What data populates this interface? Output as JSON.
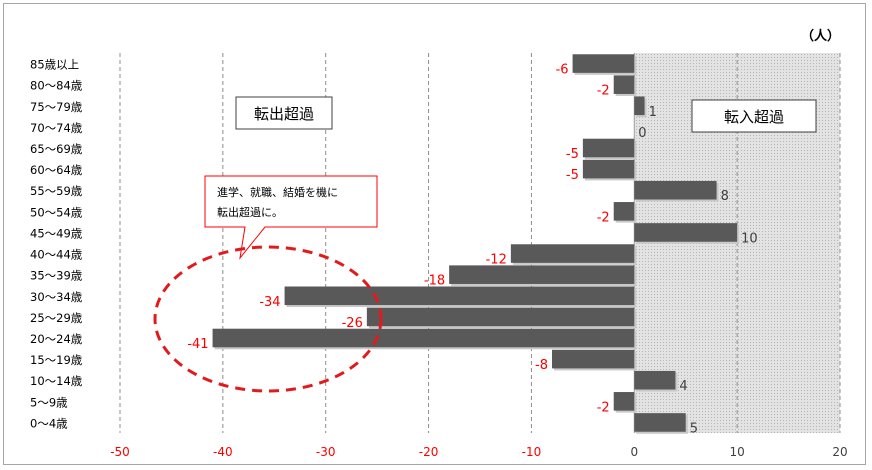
{
  "chart_data": {
    "type": "bar",
    "orientation": "horizontal",
    "unit_label": "（人）",
    "categories": [
      "85歳以上",
      "80〜84歳",
      "75〜79歳",
      "70〜74歳",
      "65〜69歳",
      "60〜64歳",
      "55〜59歳",
      "50〜54歳",
      "45〜49歳",
      "40〜44歳",
      "35〜39歳",
      "30〜34歳",
      "25〜29歳",
      "20〜24歳",
      "15〜19歳",
      "10〜14歳",
      "5〜9歳",
      "0〜4歳"
    ],
    "values": [
      -6,
      -2,
      1,
      0,
      -5,
      -5,
      8,
      -2,
      10,
      -12,
      -18,
      -34,
      -26,
      -41,
      -8,
      4,
      -2,
      5
    ],
    "xlim": [
      -50,
      20
    ],
    "xticks": [
      -50,
      -40,
      -30,
      -20,
      -10,
      0,
      10,
      20
    ],
    "grid": "vertical dashed",
    "colors": {
      "bar": "#595959",
      "negative_label": "#ff0000",
      "positive_label": "#404040",
      "positive_region": "#d9d9d9",
      "callout_border": "#ff0000",
      "ellipse": "#e31a1c"
    },
    "annotations": {
      "region_left": "転出超過",
      "region_right": "転入超過",
      "callout_line1": "進学、就職、結婚を機に",
      "callout_line2": "転出超過に。"
    }
  }
}
